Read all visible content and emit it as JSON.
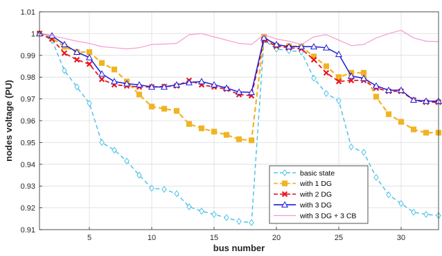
{
  "chart_data": {
    "type": "line",
    "title": "",
    "xlabel": "bus number",
    "ylabel": "nodes voltage (PU)",
    "xlim": [
      1,
      33
    ],
    "ylim": [
      0.91,
      1.01
    ],
    "xticks": [
      5,
      10,
      15,
      20,
      25,
      30
    ],
    "yticks": [
      0.91,
      0.92,
      0.93,
      0.94,
      0.95,
      0.96,
      0.97,
      0.98,
      0.99,
      1,
      1.01
    ],
    "grid": true,
    "legend_position": "bottom-right",
    "x": [
      1,
      2,
      3,
      4,
      5,
      6,
      7,
      8,
      9,
      10,
      11,
      12,
      13,
      14,
      15,
      16,
      17,
      18,
      19,
      20,
      21,
      22,
      23,
      24,
      25,
      26,
      27,
      28,
      29,
      30,
      31,
      32,
      33
    ],
    "series": [
      {
        "name": "basic state",
        "color": "#4fc3e8",
        "dash": "dashed",
        "marker": "diamond",
        "values": [
          1.0,
          0.997,
          0.983,
          0.9755,
          0.968,
          0.95,
          0.9465,
          0.9415,
          0.935,
          0.929,
          0.9285,
          0.9265,
          0.9205,
          0.9185,
          0.917,
          0.9155,
          0.9138,
          0.9132,
          0.997,
          0.9929,
          0.9922,
          0.9916,
          0.9795,
          0.9725,
          0.9692,
          0.948,
          0.9455,
          0.934,
          0.926,
          0.922,
          0.918,
          0.917,
          0.9165
        ]
      },
      {
        "name": "with 1 DG",
        "color": "#f0b323",
        "dash": "dashed",
        "marker": "square",
        "values": [
          1.0,
          0.998,
          0.994,
          0.9915,
          0.9915,
          0.9865,
          0.9835,
          0.978,
          0.972,
          0.9665,
          0.9655,
          0.9645,
          0.9585,
          0.9565,
          0.955,
          0.9535,
          0.9515,
          0.951,
          0.9985,
          0.9945,
          0.9942,
          0.994,
          0.9895,
          0.985,
          0.98,
          0.982,
          0.982,
          0.971,
          0.963,
          0.9595,
          0.956,
          0.9545,
          0.9545
        ]
      },
      {
        "name": "with 2 DG",
        "color": "#e8161d",
        "dash": "dashed",
        "marker": "x",
        "values": [
          1.0,
          0.9975,
          0.991,
          0.988,
          0.986,
          0.979,
          0.9765,
          0.976,
          0.9755,
          0.9755,
          0.9757,
          0.976,
          0.9785,
          0.9765,
          0.9755,
          0.9745,
          0.972,
          0.9715,
          0.997,
          0.9942,
          0.9935,
          0.993,
          0.988,
          0.982,
          0.978,
          0.9785,
          0.9785,
          0.975,
          0.9735,
          0.9735,
          0.9695,
          0.9685,
          0.9685
        ]
      },
      {
        "name": "with 3 DG",
        "color": "#1a1adb",
        "dash": "solid",
        "marker": "triangle",
        "values": [
          1.0,
          0.999,
          0.995,
          0.9915,
          0.989,
          0.9815,
          0.978,
          0.977,
          0.9765,
          0.9755,
          0.9755,
          0.9765,
          0.9775,
          0.978,
          0.9765,
          0.975,
          0.9732,
          0.973,
          0.998,
          0.995,
          0.994,
          0.994,
          0.994,
          0.9935,
          0.9905,
          0.9805,
          0.9795,
          0.976,
          0.974,
          0.974,
          0.9695,
          0.969,
          0.969
        ]
      },
      {
        "name": "with 3 DG + 3 CB",
        "color": "#f59bd2",
        "dash": "solid",
        "marker": "none",
        "values": [
          1.0,
          0.999,
          0.9978,
          0.9965,
          0.9955,
          0.994,
          0.9935,
          0.993,
          0.9935,
          0.995,
          0.9952,
          0.9955,
          0.9995,
          1.0,
          0.9985,
          0.997,
          0.9955,
          0.995,
          0.9995,
          0.9975,
          0.9965,
          0.995,
          0.9985,
          0.9995,
          0.997,
          0.9945,
          0.995,
          0.998,
          1.0,
          1.0015,
          0.998,
          0.9965,
          0.9963
        ]
      }
    ]
  }
}
